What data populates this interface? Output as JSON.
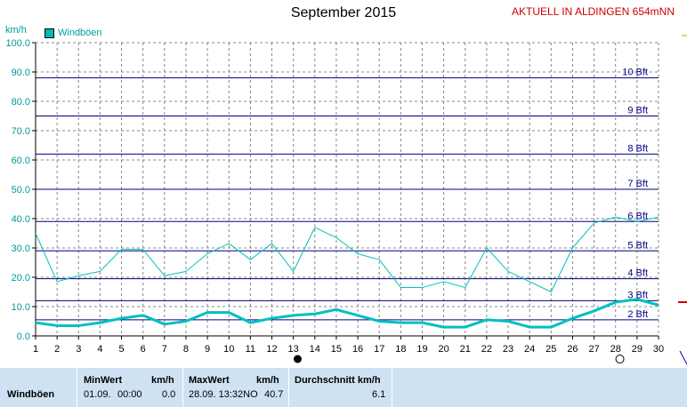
{
  "header": {
    "title": "September 2015",
    "station": "AKTUELL IN ALDINGEN 654mNN",
    "unit": "km/h",
    "legend_label": "Windböen"
  },
  "colors": {
    "series": "#00c0c0",
    "beaufort_line": "#000080",
    "beaufort_label": "#000080",
    "grid": "#888888",
    "axis": "#000000",
    "table_bg": "#cfe2f3"
  },
  "chart_data": {
    "type": "line",
    "title": "September 2015",
    "ylabel": "km/h",
    "xlim": [
      1,
      30
    ],
    "ylim": [
      0,
      100
    ],
    "x_ticks": [
      1,
      2,
      3,
      4,
      5,
      6,
      7,
      8,
      9,
      10,
      11,
      12,
      13,
      14,
      15,
      16,
      17,
      18,
      19,
      20,
      21,
      22,
      23,
      24,
      25,
      26,
      27,
      28,
      29,
      30
    ],
    "y_ticks": [
      "0.0",
      "10.0",
      "20.0",
      "30.0",
      "40.0",
      "50.0",
      "60.0",
      "70.0",
      "80.0",
      "90.0",
      "100.0"
    ],
    "grid": true,
    "legend": "top-left",
    "beaufort": [
      {
        "label": "2 Bft",
        "value": 5.5
      },
      {
        "label": "3 Bft",
        "value": 12
      },
      {
        "label": "4 Bft",
        "value": 19.5
      },
      {
        "label": "5 Bft",
        "value": 29
      },
      {
        "label": "6 Bft",
        "value": 39
      },
      {
        "label": "7 Bft",
        "value": 50
      },
      {
        "label": "8 Bft",
        "value": 62
      },
      {
        "label": "9 Bft",
        "value": 75
      },
      {
        "label": "10 Bft",
        "value": 88
      }
    ],
    "series": [
      {
        "name": "Windböen",
        "style": "thin",
        "x": [
          1,
          2,
          3,
          4,
          5,
          6,
          7,
          8,
          9,
          10,
          11,
          12,
          13,
          14,
          15,
          16,
          17,
          18,
          19,
          20,
          21,
          22,
          23,
          24,
          25,
          26,
          27,
          28,
          29,
          30
        ],
        "values": [
          35,
          18.5,
          20.5,
          22,
          29.5,
          29.5,
          20.5,
          22,
          28,
          31.5,
          26,
          31.5,
          22,
          37,
          33.5,
          28,
          26,
          16.5,
          16.5,
          18.5,
          16.5,
          30,
          22,
          18.5,
          15,
          30,
          38.5,
          40.5,
          39,
          40.5
        ]
      },
      {
        "style": "thick",
        "x": [
          1,
          2,
          3,
          4,
          5,
          6,
          7,
          8,
          9,
          10,
          11,
          12,
          13,
          14,
          15,
          16,
          17,
          18,
          19,
          20,
          21,
          22,
          23,
          24,
          25,
          26,
          27,
          28,
          29,
          30
        ],
        "values": [
          4.5,
          3.5,
          3.5,
          4.5,
          6,
          7,
          4,
          5,
          8,
          8,
          4.5,
          6,
          7,
          7.5,
          9,
          7,
          5,
          4.5,
          4.5,
          3,
          3,
          5.5,
          5,
          3,
          3,
          6,
          8.5,
          11.5,
          12.5,
          10.5
        ]
      }
    ],
    "markers": [
      {
        "x": 13.2,
        "shape": "filled-circle"
      },
      {
        "x": 28.2,
        "shape": "open-circle"
      }
    ]
  },
  "table": {
    "row_label": "Windböen",
    "min_header": "MinWert",
    "min_unit": "km/h",
    "min_date": "01.09.",
    "min_time": "00:00",
    "min_value": "0.0",
    "max_header": "MaxWert",
    "max_unit": "km/h",
    "max_datetime": "28.09. 13:32NO",
    "max_value": "40.7",
    "avg_header": "Durchschnitt km/h",
    "avg_value": "6.1"
  }
}
